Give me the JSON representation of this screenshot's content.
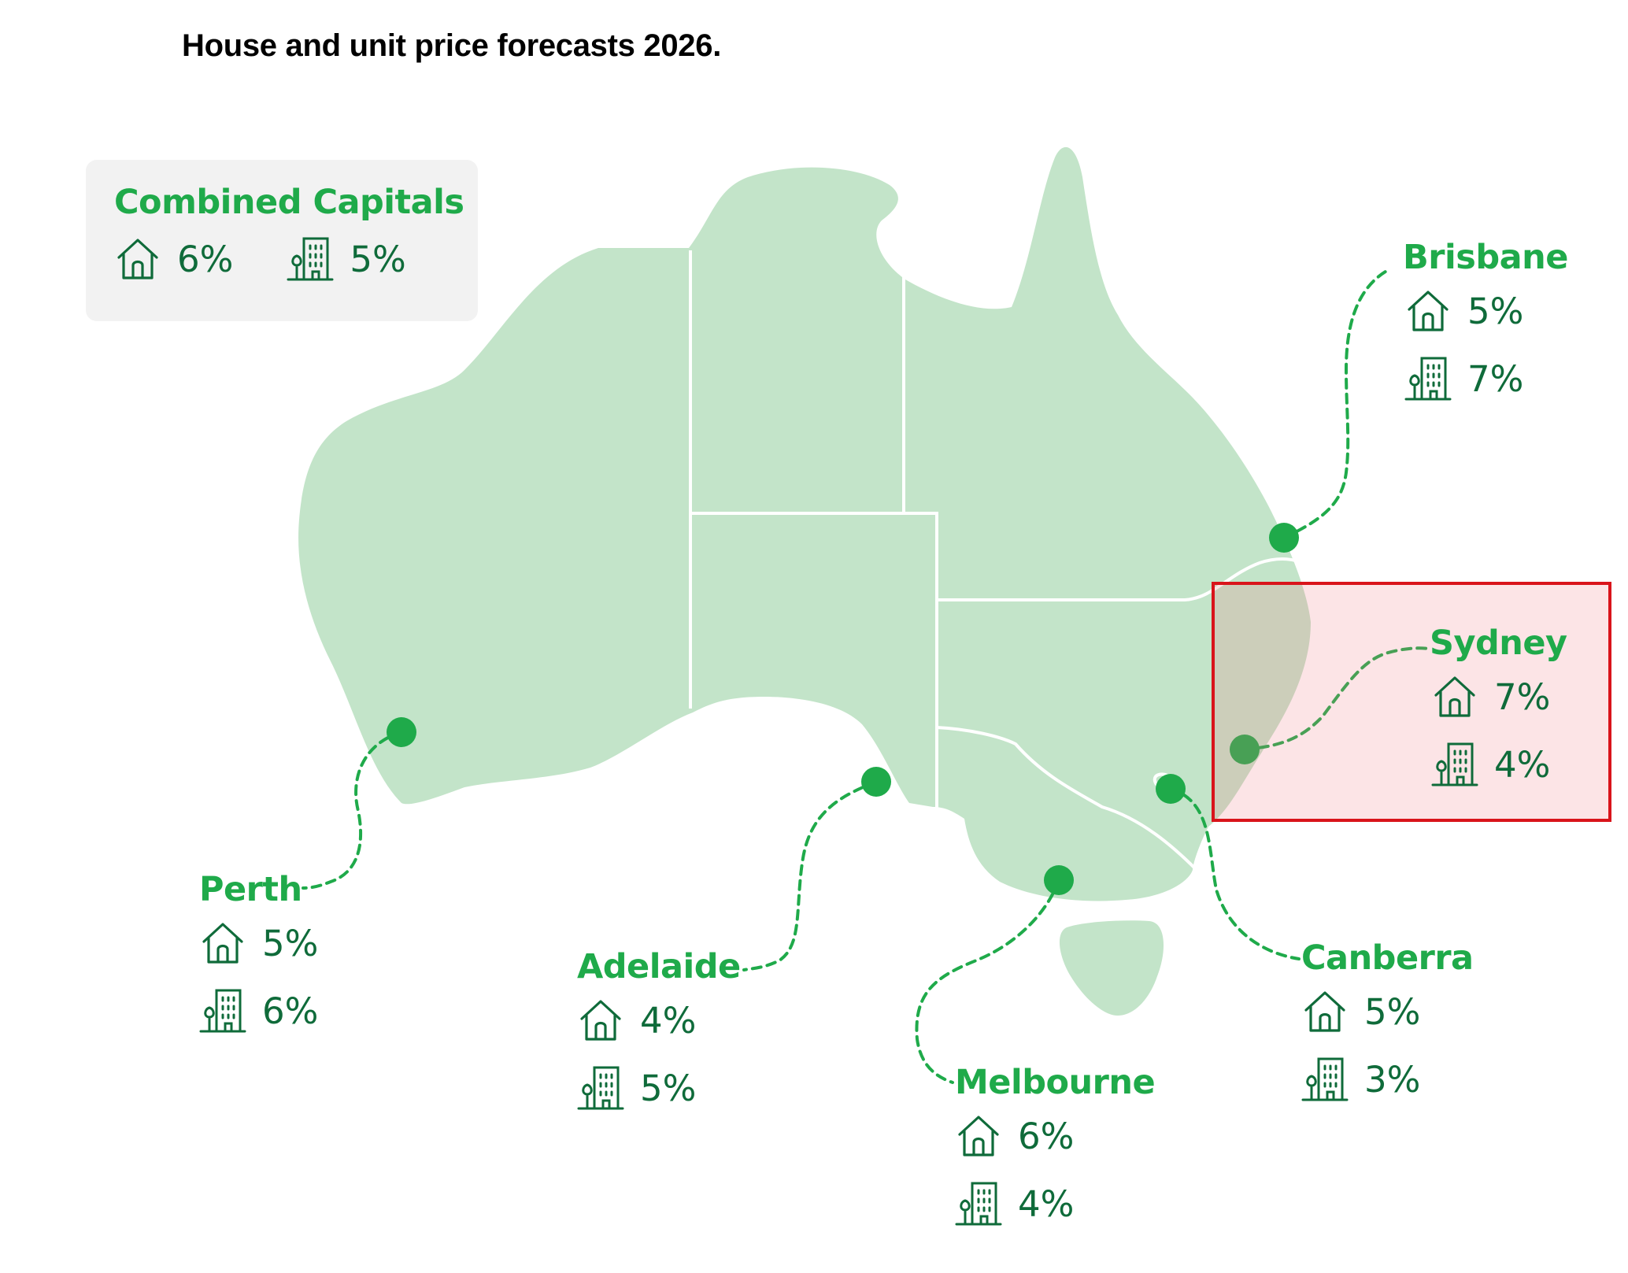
{
  "title": "House and unit price forecasts 2026.",
  "colors": {
    "land": "#c3e4c9",
    "marker": "#1faa4a",
    "label": "#1faa4a",
    "value": "#0f6b3a",
    "panel": "#f2f2f2",
    "highlight_border": "#d9141b"
  },
  "icons": {
    "house": "house-icon",
    "unit": "apartment-building-icon"
  },
  "combined": {
    "name": "Combined Capitals",
    "house": "6%",
    "unit": "5%"
  },
  "cities": {
    "brisbane": {
      "name": "Brisbane",
      "house": "5%",
      "unit": "7%"
    },
    "sydney": {
      "name": "Sydney",
      "house": "7%",
      "unit": "4%",
      "highlighted": true
    },
    "canberra": {
      "name": "Canberra",
      "house": "5%",
      "unit": "3%"
    },
    "melbourne": {
      "name": "Melbourne",
      "house": "6%",
      "unit": "4%"
    },
    "adelaide": {
      "name": "Adelaide",
      "house": "4%",
      "unit": "5%"
    },
    "perth": {
      "name": "Perth",
      "house": "5%",
      "unit": "6%"
    }
  }
}
